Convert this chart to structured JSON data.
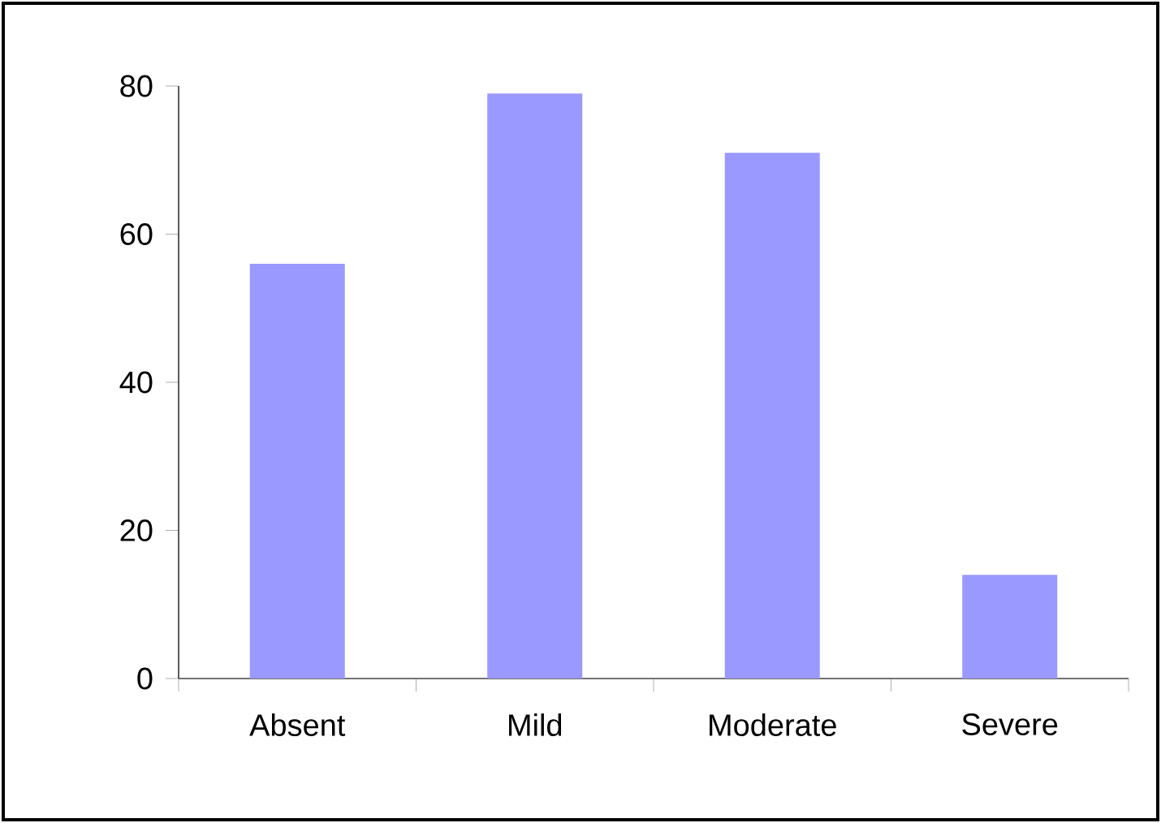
{
  "chart_data": {
    "type": "bar",
    "categories": [
      "Absent",
      "Mild",
      "Moderate",
      "Severe"
    ],
    "values": [
      56,
      79,
      71,
      14
    ],
    "color": "#9999ff",
    "ylim": [
      0,
      80
    ],
    "yticks": [
      0,
      20,
      40,
      60,
      80
    ]
  }
}
